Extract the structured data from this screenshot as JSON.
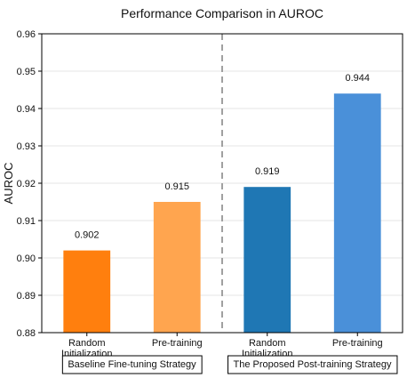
{
  "chart_data": {
    "type": "bar",
    "title": "Performance Comparison in AUROC",
    "ylabel": "AUROC",
    "ylim": [
      0.88,
      0.96
    ],
    "yticks": [
      "0.88",
      "0.89",
      "0.90",
      "0.91",
      "0.92",
      "0.93",
      "0.94",
      "0.95",
      "0.96"
    ],
    "grid": true,
    "categories": [
      [
        "Random",
        "Initialization"
      ],
      [
        "Pre-training"
      ],
      [
        "Random",
        "Initialization"
      ],
      [
        "Pre-training"
      ]
    ],
    "values": [
      0.902,
      0.915,
      0.919,
      0.944
    ],
    "data_labels": [
      "0.902",
      "0.915",
      "0.919",
      "0.944"
    ],
    "colors": [
      "#ff7f0e",
      "#ffa54f",
      "#1f77b4",
      "#4a90d9"
    ],
    "groups": [
      {
        "label": "Baseline Fine-tuning Strategy",
        "bars": [
          0,
          1
        ]
      },
      {
        "label": "The Proposed Post-training Strategy",
        "bars": [
          2,
          3
        ]
      }
    ],
    "divider_color": "#a0a0a0"
  }
}
